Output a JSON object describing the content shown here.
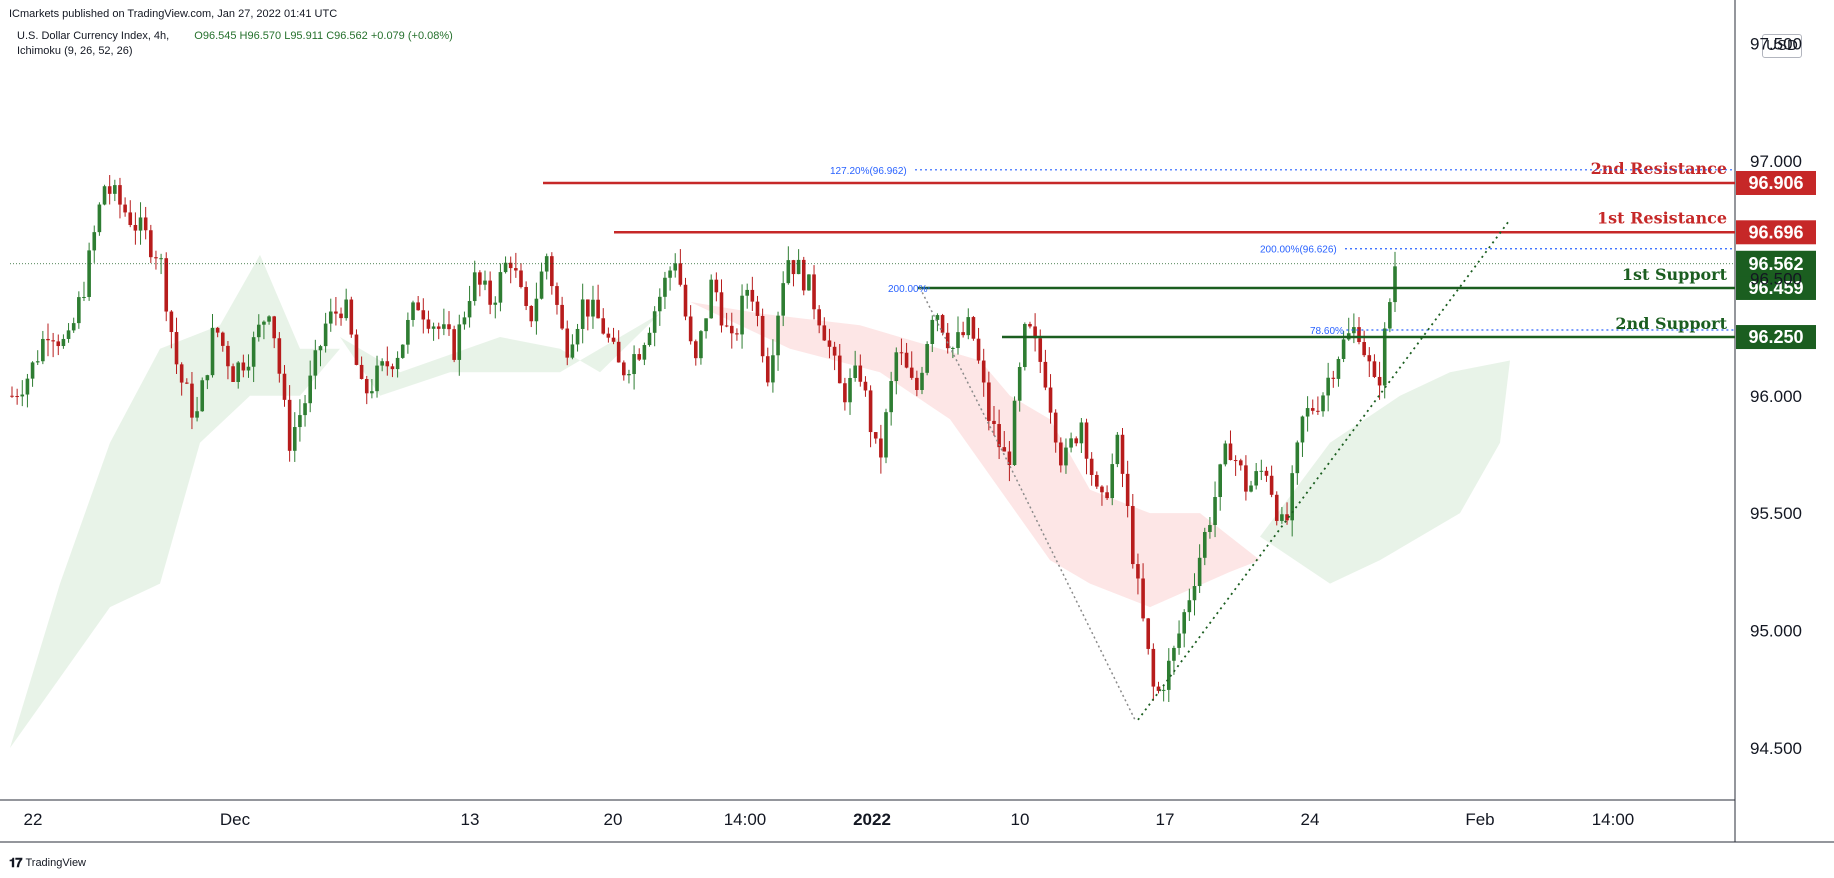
{
  "header": {
    "publisher": "ICmarkets published on TradingView.com, Jan 27, 2022 01:41 UTC"
  },
  "legend": {
    "symbol": "U.S. Dollar Currency Index, 4h,",
    "ohlc": "O96.545 H96.570 L95.911 C96.562 +0.079 (+0.08%)",
    "indicator": "Ichimoku (9, 26, 52, 26)"
  },
  "currency": "USD",
  "footer": {
    "brand": "TradingView",
    "logo": "tradingview-logo"
  },
  "colors": {
    "up": "#2e7d32",
    "down": "#b71c1c",
    "resistance": "#c62828",
    "support": "#1b5e20",
    "fib": "#2962ff",
    "cloud_up": "#e6f2e6",
    "cloud_down": "#fde3e3"
  },
  "chart_data": {
    "type": "candlestick",
    "title": "",
    "ylim": [
      94.3,
      97.6
    ],
    "y_ticks": [
      "97.500",
      "97.000",
      "96.500",
      "96.000",
      "95.500",
      "95.000",
      "94.500"
    ],
    "y_tick_values": [
      97.5,
      97.0,
      96.5,
      96.0,
      95.5,
      95.0,
      94.5
    ],
    "x_ticks": [
      {
        "label": "22",
        "bold": false
      },
      {
        "label": "Dec",
        "bold": false
      },
      {
        "label": "13",
        "bold": false
      },
      {
        "label": "20",
        "bold": false
      },
      {
        "label": "14:00",
        "bold": false
      },
      {
        "label": "2022",
        "bold": true
      },
      {
        "label": "10",
        "bold": false
      },
      {
        "label": "17",
        "bold": false
      },
      {
        "label": "24",
        "bold": false
      },
      {
        "label": "Feb",
        "bold": false
      },
      {
        "label": "14:00",
        "bold": false
      }
    ],
    "levels": [
      {
        "name": "2nd Resistance",
        "value": 96.906,
        "label": "96.906",
        "kind": "resistance"
      },
      {
        "name": "1st Resistance",
        "value": 96.696,
        "label": "96.696",
        "kind": "resistance"
      },
      {
        "name": "1st Support",
        "value": 96.459,
        "label": "96.459",
        "kind": "support"
      },
      {
        "name": "2nd Support",
        "value": 96.25,
        "label": "96.250",
        "kind": "support"
      }
    ],
    "last_price": {
      "value": 96.562,
      "label": "96.562"
    },
    "fib_levels": [
      {
        "label": "127.20%(96.962)",
        "value": 96.962
      },
      {
        "label": "200.00%(96.626)",
        "value": 96.626
      },
      {
        "label": "200.00%",
        "value": 96.459
      },
      {
        "label": "78.60%",
        "value": 96.28
      }
    ],
    "price_path": [
      96.0,
      96.1,
      96.3,
      96.2,
      96.5,
      96.9,
      96.8,
      96.7,
      96.6,
      96.1,
      95.9,
      96.3,
      96.1,
      96.2,
      96.4,
      95.8,
      96.0,
      96.3,
      96.4,
      96.0,
      96.1,
      96.2,
      96.4,
      96.3,
      96.2,
      96.5,
      96.4,
      96.6,
      96.3,
      96.6,
      96.2,
      96.4,
      96.3,
      96.1,
      96.2,
      96.4,
      96.6,
      96.1,
      96.5,
      96.2,
      96.5,
      96.1,
      96.6,
      96.5,
      96.3,
      96.0,
      96.1,
      95.7,
      96.2,
      96.0,
      96.4,
      96.2,
      96.3,
      95.9,
      95.7,
      96.3,
      96.1,
      95.7,
      95.9,
      95.5,
      95.8,
      95.2,
      94.7,
      94.9,
      95.2,
      95.5,
      95.8,
      95.6,
      95.7,
      95.4,
      95.9,
      96.0,
      96.2,
      96.3,
      96.0,
      96.56
    ]
  }
}
